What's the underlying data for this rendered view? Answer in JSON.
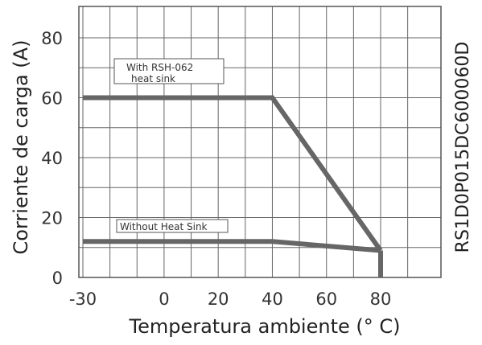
{
  "chart_data": {
    "type": "line",
    "xlabel": "Temperatura ambiente (° C)",
    "ylabel": "Corriente de carga (A)",
    "side_code": "RS1D0P015DC600060D",
    "xlim": [
      -30,
      100
    ],
    "ylim": [
      0,
      90
    ],
    "x_ticks": [
      -30,
      0,
      20,
      40,
      60,
      80
    ],
    "x_tick_labels": [
      "-30",
      "0",
      "20",
      "40",
      "60",
      "80"
    ],
    "y_ticks": [
      0,
      20,
      40,
      60,
      80
    ],
    "y_tick_labels": [
      "0",
      "20",
      "40",
      "60",
      "80"
    ],
    "grid": true,
    "series": [
      {
        "name": "With RSH-062 heat sink",
        "label_lines": [
          "With RSH-062",
          "heat sink"
        ],
        "x": [
          -30,
          40,
          80
        ],
        "y": [
          60,
          60,
          9
        ],
        "color": "#666666"
      },
      {
        "name": "Without Heat Sink",
        "label_lines": [
          "Without Heat Sink"
        ],
        "x": [
          -30,
          40,
          80
        ],
        "y": [
          12,
          12,
          9
        ],
        "color": "#666666"
      }
    ],
    "drop_line": {
      "x": 80,
      "from_y": 9,
      "to_y": 0,
      "color": "#666666"
    },
    "colors": {
      "frame": "#555555",
      "grid": "#666666",
      "series": "#666666"
    }
  }
}
